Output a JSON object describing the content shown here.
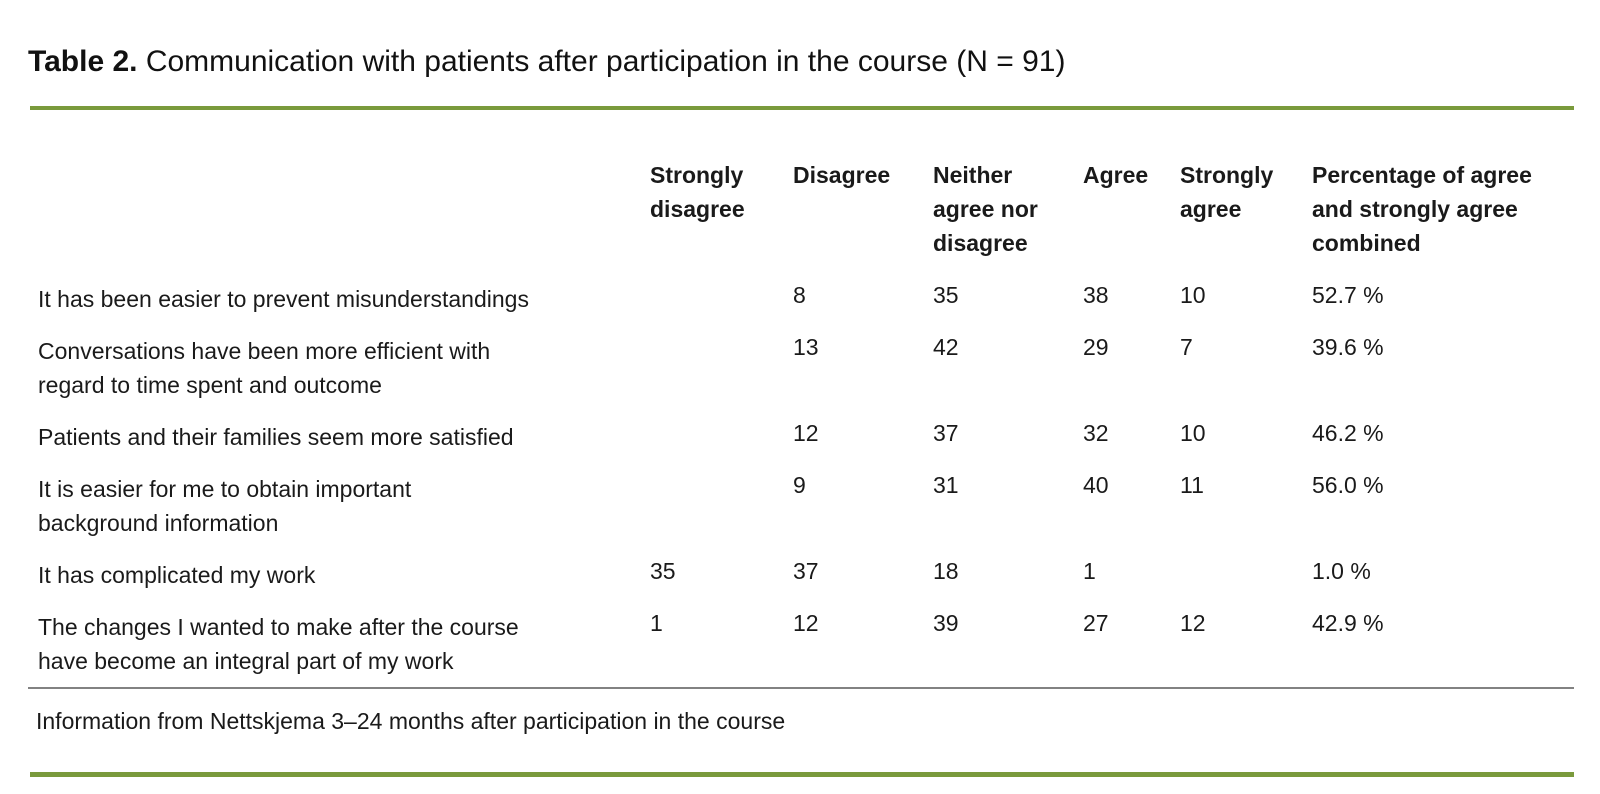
{
  "title": {
    "prefix": "Table 2.",
    "rest": " Communication with patients after participation in the course (N = 91)"
  },
  "table": {
    "columns": [
      {
        "lines": [
          "Strongly",
          "disagree"
        ]
      },
      {
        "lines": [
          "Disagree"
        ]
      },
      {
        "lines": [
          "Neither",
          "agree nor",
          "disagree"
        ]
      },
      {
        "lines": [
          "Agree"
        ]
      },
      {
        "lines": [
          "Strongly",
          "agree"
        ]
      },
      {
        "lines": [
          "Percentage of agree",
          "and strongly agree",
          "combined"
        ]
      }
    ],
    "rows": [
      {
        "lines": [
          "It has been easier to prevent misunderstandings"
        ],
        "values": [
          "",
          "8",
          "35",
          "38",
          "10",
          "52.7 %"
        ]
      },
      {
        "lines": [
          "Conversations have been more efficient with",
          "regard to time spent and outcome"
        ],
        "values": [
          "",
          "13",
          "42",
          "29",
          "7",
          "39.6 %"
        ]
      },
      {
        "lines": [
          "Patients and their families seem more satisfied"
        ],
        "values": [
          "",
          "12",
          "37",
          "32",
          "10",
          "46.2 %"
        ]
      },
      {
        "lines": [
          "It is easier for me to obtain important",
          "background information"
        ],
        "values": [
          "",
          "9",
          "31",
          "40",
          "11",
          "56.0 %"
        ]
      },
      {
        "lines": [
          "It has complicated my work"
        ],
        "values": [
          "35",
          "37",
          "18",
          "1",
          "",
          "1.0 %"
        ]
      },
      {
        "lines": [
          "The changes I wanted to make after the course",
          "have become an integral part of my work"
        ],
        "values": [
          "1",
          "12",
          "39",
          "27",
          "12",
          "42.9 %"
        ]
      }
    ]
  },
  "footnote": "Information from Nettskjema 3–24 months after participation in the course",
  "colors": {
    "accent_green": "#7A9A3C",
    "rule_gray": "#828282"
  }
}
